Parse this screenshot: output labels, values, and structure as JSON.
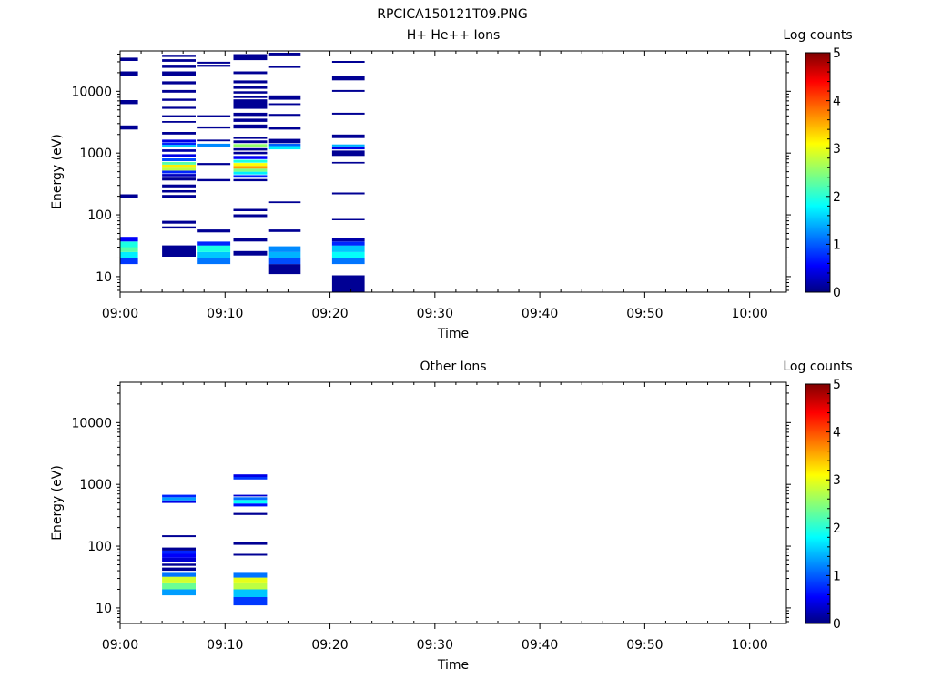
{
  "figure_title": "RPCICA150121T09.PNG",
  "colors": {
    "scale": [
      "#000080",
      "#0000ff",
      "#00ffff",
      "#ffff00",
      "#ff0000",
      "#800000"
    ]
  },
  "chart_data": [
    {
      "type": "heatmap",
      "title": "H+ He++ Ions",
      "xlabel": "Time",
      "ylabel": "Energy (eV)",
      "x_ticks": [
        "09:00",
        "09:10",
        "09:20",
        "09:30",
        "09:40",
        "09:50",
        "10:00"
      ],
      "xlim_minutes": [
        0,
        63.5
      ],
      "y_scale": "log",
      "ylim": [
        5.6,
        45000
      ],
      "y_ticks": [
        10,
        100,
        1000,
        10000
      ],
      "y_tick_labels": [
        "10",
        "100",
        "1000",
        "10000"
      ],
      "colorbar": {
        "label": "Log counts",
        "range": [
          0,
          5
        ],
        "ticks": [
          "0",
          "1",
          "2",
          "3",
          "4",
          "5"
        ]
      },
      "columns": [
        {
          "t": [
            0.0,
            1.7
          ],
          "bins": [
            [
              16,
              20,
              0.9
            ],
            [
              20,
              25,
              1.8
            ],
            [
              25,
              30,
              2.3
            ],
            [
              30,
              37,
              2.0
            ],
            [
              37,
              44,
              0.6
            ],
            [
              190,
              215,
              0.1
            ],
            [
              2400,
              2800,
              0.1
            ],
            [
              6200,
              7200,
              0.1
            ],
            [
              18000,
              21000,
              0.1
            ],
            [
              31000,
              35000,
              0.1
            ]
          ]
        },
        {
          "t": [
            4.0,
            7.2
          ],
          "bins": [
            [
              21,
              32,
              0.1
            ],
            [
              60,
              65,
              0.1
            ],
            [
              72,
              80,
              0.1
            ],
            [
              190,
              210,
              0.1
            ],
            [
              230,
              250,
              0.1
            ],
            [
              270,
              310,
              0.1
            ],
            [
              360,
              400,
              0.1
            ],
            [
              420,
              460,
              0.3
            ],
            [
              470,
              520,
              0.8
            ],
            [
              520,
              580,
              2.8
            ],
            [
              580,
              650,
              3.2
            ],
            [
              650,
              720,
              2.3
            ],
            [
              740,
              820,
              1.0
            ],
            [
              880,
              960,
              0.5
            ],
            [
              1050,
              1150,
              0.2
            ],
            [
              1250,
              1360,
              1.6
            ],
            [
              1360,
              1480,
              0.8
            ],
            [
              1500,
              1650,
              0.5
            ],
            [
              2000,
              2200,
              0.1
            ],
            [
              3100,
              3300,
              0.1
            ],
            [
              3800,
              4100,
              0.1
            ],
            [
              5200,
              5600,
              0.1
            ],
            [
              7000,
              7600,
              0.1
            ],
            [
              9500,
              10500,
              0.1
            ],
            [
              13000,
              14500,
              0.1
            ],
            [
              18000,
              21000,
              0.1
            ],
            [
              24000,
              27000,
              0.1
            ],
            [
              30000,
              33000,
              0.1
            ],
            [
              36000,
              39000,
              0.1
            ]
          ]
        },
        {
          "t": [
            7.3,
            10.5
          ],
          "bins": [
            [
              16,
              20,
              1.2
            ],
            [
              20,
              25,
              1.6
            ],
            [
              25,
              32,
              2.0
            ],
            [
              32,
              37,
              0.8
            ],
            [
              52,
              58,
              0.1
            ],
            [
              350,
              380,
              0.1
            ],
            [
              640,
              690,
              0.1
            ],
            [
              1250,
              1420,
              1.3
            ],
            [
              1550,
              1650,
              0.1
            ],
            [
              2500,
              2700,
              0.1
            ],
            [
              3800,
              4100,
              0.1
            ],
            [
              25000,
              27000,
              0.1
            ],
            [
              28000,
              30000,
              0.1
            ]
          ]
        },
        {
          "t": [
            10.8,
            14.0
          ],
          "bins": [
            [
              22,
              26,
              0.1
            ],
            [
              37,
              42,
              0.1
            ],
            [
              92,
              102,
              0.1
            ],
            [
              115,
              125,
              0.1
            ],
            [
              350,
              380,
              0.1
            ],
            [
              400,
              440,
              0.8
            ],
            [
              450,
              500,
              1.8
            ],
            [
              500,
              560,
              2.5
            ],
            [
              560,
              620,
              3.6
            ],
            [
              620,
              690,
              3.1
            ],
            [
              700,
              780,
              2.0
            ],
            [
              800,
              900,
              0.6
            ],
            [
              960,
              1050,
              0.1
            ],
            [
              1100,
              1200,
              0.1
            ],
            [
              1250,
              1400,
              2.6
            ],
            [
              1450,
              1600,
              0.1
            ],
            [
              1700,
              1850,
              0.1
            ],
            [
              2500,
              2900,
              0.1
            ],
            [
              3200,
              3600,
              0.1
            ],
            [
              4000,
              4500,
              0.1
            ],
            [
              5200,
              7400,
              0.1
            ],
            [
              7800,
              8400,
              0.1
            ],
            [
              9200,
              10000,
              0.1
            ],
            [
              11000,
              12000,
              0.1
            ],
            [
              13500,
              15000,
              0.1
            ],
            [
              19000,
              21000,
              0.1
            ],
            [
              32000,
              40000,
              0.1
            ]
          ]
        },
        {
          "t": [
            14.2,
            17.2
          ],
          "bins": [
            [
              11,
              16,
              0.1
            ],
            [
              16,
              20,
              1.0
            ],
            [
              20,
              25,
              1.5
            ],
            [
              25,
              31,
              1.3
            ],
            [
              53,
              58,
              0.1
            ],
            [
              155,
              165,
              0.1
            ],
            [
              1150,
              1300,
              1.8
            ],
            [
              1300,
              1420,
              1.1
            ],
            [
              1450,
              1700,
              0.1
            ],
            [
              2400,
              2600,
              0.1
            ],
            [
              4000,
              4300,
              0.1
            ],
            [
              6000,
              6400,
              0.1
            ],
            [
              7300,
              8600,
              0.1
            ],
            [
              24000,
              26000,
              0.1
            ],
            [
              38000,
              42000,
              0.1
            ]
          ]
        },
        {
          "t": [
            20.2,
            23.3
          ],
          "bins": [
            [
              5.6,
              10.5,
              0.1
            ],
            [
              16,
              20,
              1.2
            ],
            [
              20,
              25,
              1.9
            ],
            [
              25,
              32,
              1.6
            ],
            [
              32,
              37,
              0.8
            ],
            [
              37,
              42,
              0.2
            ],
            [
              82,
              86,
              0.1
            ],
            [
              215,
              230,
              0.1
            ],
            [
              680,
              720,
              0.1
            ],
            [
              900,
              1100,
              0.1
            ],
            [
              1150,
              1280,
              0.5
            ],
            [
              1280,
              1380,
              1.5
            ],
            [
              1750,
              2000,
              0.1
            ],
            [
              4200,
              4500,
              0.1
            ],
            [
              9800,
              10500,
              0.1
            ],
            [
              15000,
              17500,
              0.1
            ],
            [
              29000,
              31000,
              0.1
            ]
          ]
        }
      ]
    },
    {
      "type": "heatmap",
      "title": "Other Ions",
      "xlabel": "Time",
      "ylabel": "Energy (eV)",
      "x_ticks": [
        "09:00",
        "09:10",
        "09:20",
        "09:30",
        "09:40",
        "09:50",
        "10:00"
      ],
      "xlim_minutes": [
        0,
        63.5
      ],
      "y_scale": "log",
      "ylim": [
        5.6,
        45000
      ],
      "y_ticks": [
        10,
        100,
        1000,
        10000
      ],
      "y_tick_labels": [
        "10",
        "100",
        "1000",
        "10000"
      ],
      "colorbar": {
        "label": "Log counts",
        "range": [
          0,
          5
        ],
        "ticks": [
          "0",
          "1",
          "2",
          "3",
          "4",
          "5"
        ]
      },
      "columns": [
        {
          "t": [
            4.0,
            7.2
          ],
          "bins": [
            [
              16,
              20,
              1.4
            ],
            [
              20,
              25,
              2.4
            ],
            [
              25,
              32,
              2.9
            ],
            [
              32,
              37,
              1.2
            ],
            [
              40,
              45,
              0.1
            ],
            [
              48,
              52,
              0.1
            ],
            [
              55,
              65,
              0.4
            ],
            [
              65,
              75,
              0.6
            ],
            [
              75,
              85,
              0.8
            ],
            [
              85,
              95,
              0.1
            ],
            [
              140,
              150,
              0.1
            ],
            [
              500,
              550,
              0.5
            ],
            [
              550,
              620,
              1.4
            ],
            [
              620,
              680,
              0.8
            ]
          ]
        },
        {
          "t": [
            10.8,
            14.0
          ],
          "bins": [
            [
              11,
              15,
              0.9
            ],
            [
              15,
              20,
              1.6
            ],
            [
              20,
              25,
              2.8
            ],
            [
              25,
              31,
              3.0
            ],
            [
              31,
              37,
              1.2
            ],
            [
              70,
              75,
              0.1
            ],
            [
              105,
              115,
              0.1
            ],
            [
              320,
              345,
              0.1
            ],
            [
              440,
              490,
              0.7
            ],
            [
              490,
              560,
              1.9
            ],
            [
              560,
              620,
              1.2
            ],
            [
              640,
              680,
              0.4
            ],
            [
              1200,
              1320,
              0.9
            ],
            [
              1320,
              1450,
              0.5
            ]
          ]
        }
      ]
    }
  ]
}
